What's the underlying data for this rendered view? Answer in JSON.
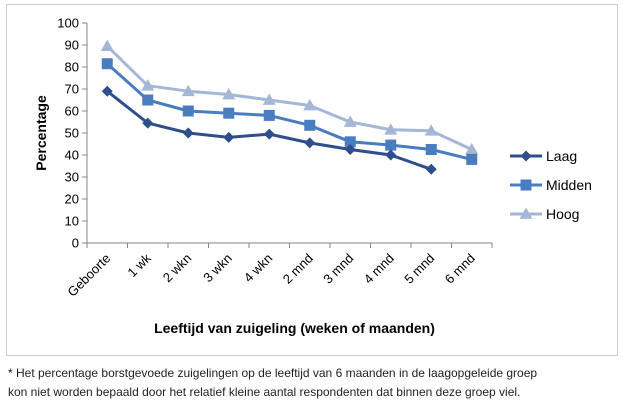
{
  "chart_data": {
    "type": "line",
    "title": "",
    "xlabel": "Leeftijd van zuigeling (weken of maanden)",
    "ylabel": "Percentage",
    "ylim": [
      0,
      100
    ],
    "ytick_step": 10,
    "grid": false,
    "legend_position": "right",
    "categories": [
      "Geboorte",
      "1 wk",
      "2 wkn",
      "3 wkn",
      "4 wkn",
      "2 mnd",
      "3 mnd",
      "4 mnd",
      "5 mnd",
      "6 mnd"
    ],
    "series": [
      {
        "name": "Laag",
        "color": "#2E4E8C",
        "marker": "diamond",
        "values": [
          69,
          54.5,
          50,
          48,
          49.5,
          45.5,
          42.5,
          40,
          33.5,
          null
        ]
      },
      {
        "name": "Midden",
        "color": "#4A7CC0",
        "marker": "square",
        "values": [
          81.5,
          65,
          60,
          59,
          58,
          53.5,
          46,
          44.5,
          42.5,
          38
        ]
      },
      {
        "name": "Hoog",
        "color": "#A5B7D6",
        "marker": "triangle",
        "values": [
          89.5,
          71.5,
          69,
          67.5,
          65,
          62.5,
          55,
          51.5,
          51,
          42.5
        ]
      }
    ]
  },
  "footnote": {
    "line1": "* Het percentage borstgevoede zuigelingen op de leeftijd van 6 maanden in de laagopgeleide groep",
    "line2": "kon niet worden bepaald door het relatief kleine aantal respondenten dat binnen deze groep viel."
  }
}
